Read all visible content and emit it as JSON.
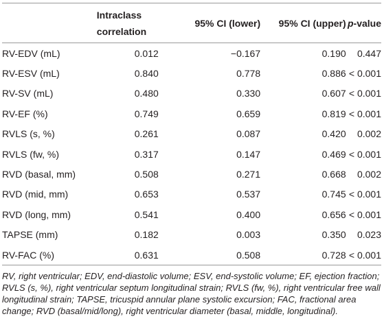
{
  "table": {
    "header": [
      "Intraclass correlation",
      "95% CI (lower)",
      "95% CI (upper)",
      {
        "italic": "p",
        "rest": "-value"
      }
    ],
    "rows": [
      [
        "RV-EDV (mL)",
        "0.012",
        "−0.167",
        "0.190",
        "0.447"
      ],
      [
        "RV-ESV (mL)",
        "0.840",
        "0.778",
        "0.886",
        "< 0.001"
      ],
      [
        "RV-SV (mL)",
        "0.480",
        "0.330",
        "0.607",
        "< 0.001"
      ],
      [
        "RV-EF (%)",
        "0.749",
        "0.659",
        "0.819",
        "< 0.001"
      ],
      [
        "RVLS (s, %)",
        "0.261",
        "0.087",
        "0.420",
        "0.002"
      ],
      [
        "RVLS (fw, %)",
        "0.317",
        "0.147",
        "0.469",
        "< 0.001"
      ],
      [
        "RVD (basal, mm)",
        "0.508",
        "0.271",
        "0.668",
        "0.002"
      ],
      [
        "RVD (mid, mm)",
        "0.653",
        "0.537",
        "0.745",
        "< 0.001"
      ],
      [
        "RVD (long, mm)",
        "0.541",
        "0.400",
        "0.656",
        "< 0.001"
      ],
      [
        "TAPSE (mm)",
        "0.182",
        "0.003",
        "0.350",
        "0.023"
      ],
      [
        "RV-FAC (%)",
        "0.631",
        "0.508",
        "0.728",
        "< 0.001"
      ]
    ],
    "footnote": "RV, right ventricular; EDV, end-diastolic volume; ESV, end-systolic volume; EF, ejection fraction; RVLS (s, %), right ventricular septum longitudinal strain; RVLS (fw, %), right ventricular free wall longitudinal strain; TAPSE, tricuspid annular plane systolic excursion; FAC, fractional area change; RVD (basal/mid/long), right ventricular diameter (basal, middle, longitudinal)."
  }
}
